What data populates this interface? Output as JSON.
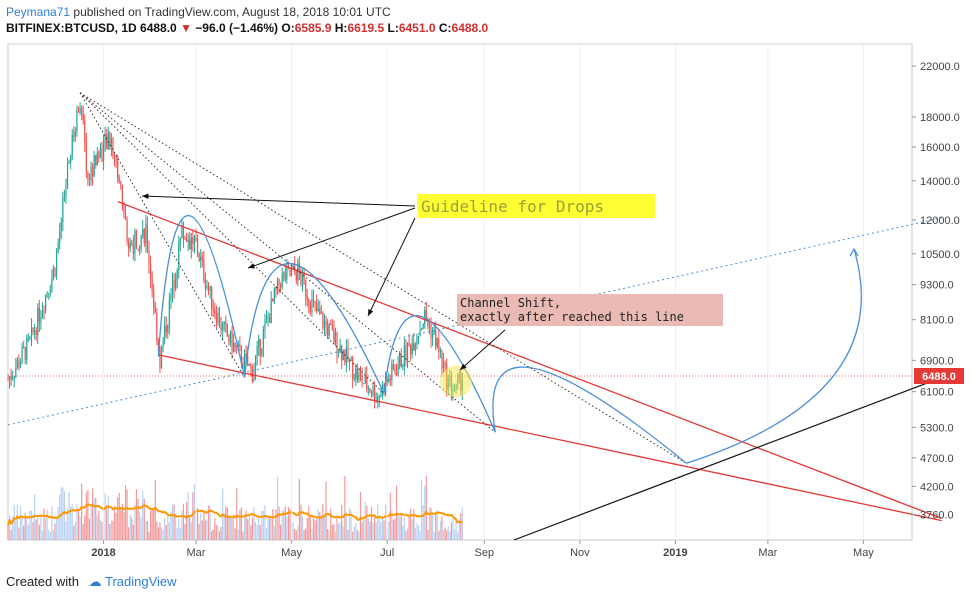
{
  "header": {
    "author": "Peymana71",
    "published_text": "published on TradingView.com, August 18, 2018 10:01 UTC",
    "symbol": "BITFINEX:BTCUSD, 1D",
    "last": "6488.0",
    "change": "−96.0 (−1.46%)",
    "open_label": "O:",
    "open": "6585.9",
    "high_label": "H:",
    "high": "6619.5",
    "low_label": "L:",
    "low": "6451.0",
    "close_label": "C:",
    "close": "6488.0"
  },
  "footer": {
    "created_with": "Created with",
    "brand": "TradingView"
  },
  "colors": {
    "up": "#26a69a",
    "down": "#ef5350",
    "trend": "#e53935",
    "arc": "#4a90d9",
    "ma": "#ff9800",
    "price_tag": "#e53935"
  },
  "annotations": {
    "guideline": "Guideline for Drops",
    "channel_line1": "Channel Shift,",
    "channel_line2": "exactly after reached this line"
  },
  "chart_data": {
    "type": "candlestick",
    "symbol": "BITFINEX:BTCUSD",
    "timeframe": "1D",
    "y_scale": "log",
    "ylim": [
      3400,
      24000
    ],
    "yticks": [
      22000,
      18000,
      16000,
      14000,
      12000,
      10500,
      9300,
      8100,
      6900,
      6100,
      5300,
      4700,
      4200,
      3760
    ],
    "ytick_labels": [
      "22000.0",
      "18000.0",
      "16000.0",
      "14000.0",
      "12000.0",
      "10500.0",
      "9300.0",
      "8100.0",
      "6900.0",
      "6100.0",
      "5300.0",
      "4700.0",
      "4200.0",
      "3760.0"
    ],
    "x_range": [
      "2017-11-01",
      "2019-06-01"
    ],
    "xticks": [
      {
        "date": "2018-01-01",
        "label": "2018"
      },
      {
        "date": "2018-03-01",
        "label": "Mar"
      },
      {
        "date": "2018-05-01",
        "label": "May"
      },
      {
        "date": "2018-07-01",
        "label": "Jul"
      },
      {
        "date": "2018-09-01",
        "label": "Sep"
      },
      {
        "date": "2018-11-01",
        "label": "Nov"
      },
      {
        "date": "2019-01-01",
        "label": "2019"
      },
      {
        "date": "2019-03-01",
        "label": "Mar"
      },
      {
        "date": "2019-05-01",
        "label": "May"
      }
    ],
    "last_price": 6488.0,
    "last_price_label": "6488.0",
    "price_path": [
      [
        "2017-11-01",
        6400
      ],
      [
        "2017-11-15",
        7400
      ],
      [
        "2017-12-01",
        10000
      ],
      [
        "2017-12-10",
        15000
      ],
      [
        "2017-12-17",
        19500
      ],
      [
        "2017-12-22",
        14000
      ],
      [
        "2017-12-28",
        15500
      ],
      [
        "2018-01-06",
        16500
      ],
      [
        "2018-01-12",
        13500
      ],
      [
        "2018-01-17",
        10800
      ],
      [
        "2018-01-28",
        11500
      ],
      [
        "2018-02-06",
        6900
      ],
      [
        "2018-02-15",
        9500
      ],
      [
        "2018-02-20",
        11400
      ],
      [
        "2018-03-01",
        10900
      ],
      [
        "2018-03-10",
        8900
      ],
      [
        "2018-03-18",
        7800
      ],
      [
        "2018-03-31",
        6900
      ],
      [
        "2018-04-06",
        6600
      ],
      [
        "2018-04-15",
        8000
      ],
      [
        "2018-04-24",
        9500
      ],
      [
        "2018-05-05",
        9800
      ],
      [
        "2018-05-15",
        8500
      ],
      [
        "2018-05-30",
        7400
      ],
      [
        "2018-06-12",
        6500
      ],
      [
        "2018-06-25",
        6000
      ],
      [
        "2018-07-05",
        6600
      ],
      [
        "2018-07-17",
        7400
      ],
      [
        "2018-07-25",
        8200
      ],
      [
        "2018-08-01",
        7500
      ],
      [
        "2018-08-08",
        6400
      ],
      [
        "2018-08-14",
        6100
      ],
      [
        "2018-08-18",
        6488
      ]
    ],
    "ohlc_last": {
      "open": 6585.9,
      "high": 6619.5,
      "low": 6451.0,
      "close": 6488.0
    },
    "lines": [
      {
        "name": "upper-channel",
        "style": "red",
        "from": [
          "2018-01-10",
          12900
        ],
        "to": [
          "2019-06-20",
          3700
        ]
      },
      {
        "name": "lower-channel",
        "style": "red",
        "from": [
          "2018-02-05",
          7050
        ],
        "to": [
          "2019-06-20",
          3670
        ]
      },
      {
        "name": "rising-support",
        "style": "black",
        "from": [
          "2018-09-20",
          3400
        ],
        "to": [
          "2019-06-20",
          6450
        ]
      },
      {
        "name": "rising-dotted",
        "style": "blue-dotted",
        "from": [
          "2017-11-01",
          5350
        ],
        "to": [
          "2019-06-20",
          12100
        ]
      },
      {
        "name": "fan-1",
        "style": "black-dotted",
        "from": [
          "2017-12-17",
          19800
        ],
        "to": [
          "2018-04-01",
          6450
        ]
      },
      {
        "name": "fan-2",
        "style": "black-dotted",
        "from": [
          "2017-12-17",
          19800
        ],
        "to": [
          "2018-06-29",
          6050
        ]
      },
      {
        "name": "fan-3",
        "style": "black-dotted",
        "from": [
          "2017-12-17",
          19800
        ],
        "to": [
          "2018-09-08",
          5200
        ]
      },
      {
        "name": "fan-4",
        "style": "black-dotted",
        "from": [
          "2017-12-17",
          19800
        ],
        "to": [
          "2019-01-08",
          4600
        ]
      }
    ],
    "arcs": [
      [
        [
          "2018-02-05",
          7000
        ],
        [
          "2018-02-25",
          12200
        ],
        [
          "2018-04-01",
          6450
        ]
      ],
      [
        [
          "2018-04-01",
          6450
        ],
        [
          "2018-05-01",
          10100
        ],
        [
          "2018-06-29",
          6050
        ]
      ],
      [
        [
          "2018-06-29",
          6050
        ],
        [
          "2018-07-23",
          8200
        ],
        [
          "2018-09-08",
          5200
        ]
      ],
      [
        [
          "2018-09-08",
          5200
        ],
        [
          "2018-10-01",
          6700
        ],
        [
          "2019-01-08",
          4600
        ]
      ],
      [
        [
          "2019-01-08",
          4600
        ],
        [
          "2019-04-12",
          6500
        ],
        [
          "2019-04-25",
          10700
        ]
      ]
    ],
    "volume": {
      "note": "daily volume bars with moving average",
      "period_end": "2018-08-18"
    }
  }
}
